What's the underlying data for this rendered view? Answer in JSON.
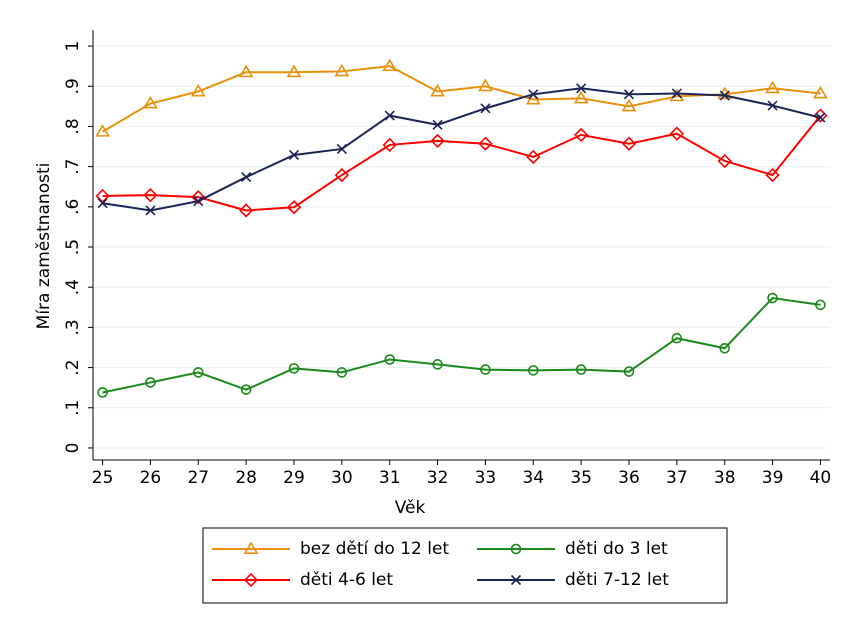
{
  "chart_data": {
    "type": "line",
    "x_label": "Věk",
    "y_label": "Míra zaměstnanosti",
    "x": [
      25,
      26,
      27,
      28,
      29,
      30,
      31,
      32,
      33,
      34,
      35,
      36,
      37,
      38,
      39,
      40
    ],
    "xlim": [
      24.8,
      40.2
    ],
    "xticks": [
      25,
      26,
      27,
      28,
      29,
      30,
      31,
      32,
      33,
      34,
      35,
      36,
      37,
      38,
      39,
      40
    ],
    "ylim": [
      -0.03,
      1.04
    ],
    "yticks": [
      0,
      {
        "value": 0.1,
        "label": ".1"
      },
      {
        "value": 0.2,
        "label": ".2"
      },
      {
        "value": 0.3,
        "label": ".3"
      },
      {
        "value": 0.4,
        "label": ".4"
      },
      {
        "value": 0.5,
        "label": ".5"
      },
      {
        "value": 0.6,
        "label": ".6"
      },
      {
        "value": 0.7,
        "label": ".7"
      },
      {
        "value": 0.8,
        "label": ".8"
      },
      {
        "value": 0.9,
        "label": ".9"
      },
      1
    ],
    "grid": true,
    "legend_position": "bottom",
    "series": [
      {
        "name": "bez dětí do 12 let",
        "color": "#e8900c",
        "marker": "triangle",
        "values": [
          0.787,
          0.857,
          0.887,
          0.935,
          0.935,
          0.937,
          0.95,
          0.887,
          0.9,
          0.867,
          0.87,
          0.85,
          0.875,
          0.88,
          0.895,
          0.882
        ]
      },
      {
        "name": "děti do 3 let",
        "color": "#1a8a1a",
        "marker": "circle",
        "values": [
          0.138,
          0.163,
          0.188,
          0.145,
          0.198,
          0.188,
          0.22,
          0.208,
          0.195,
          0.193,
          0.195,
          0.19,
          0.273,
          0.248,
          0.373,
          0.356
        ]
      },
      {
        "name": "děti 4-6 let",
        "color": "#ff0000",
        "marker": "diamond",
        "values": [
          0.627,
          0.629,
          0.624,
          0.591,
          0.599,
          0.679,
          0.754,
          0.764,
          0.757,
          0.724,
          0.779,
          0.757,
          0.782,
          0.714,
          0.679,
          0.827
        ]
      },
      {
        "name": "děti 7-12 let",
        "color": "#1a2456",
        "marker": "x",
        "values": [
          0.609,
          0.591,
          0.614,
          0.674,
          0.729,
          0.744,
          0.827,
          0.804,
          0.845,
          0.88,
          0.895,
          0.88,
          0.882,
          0.877,
          0.852,
          0.822
        ]
      }
    ]
  }
}
